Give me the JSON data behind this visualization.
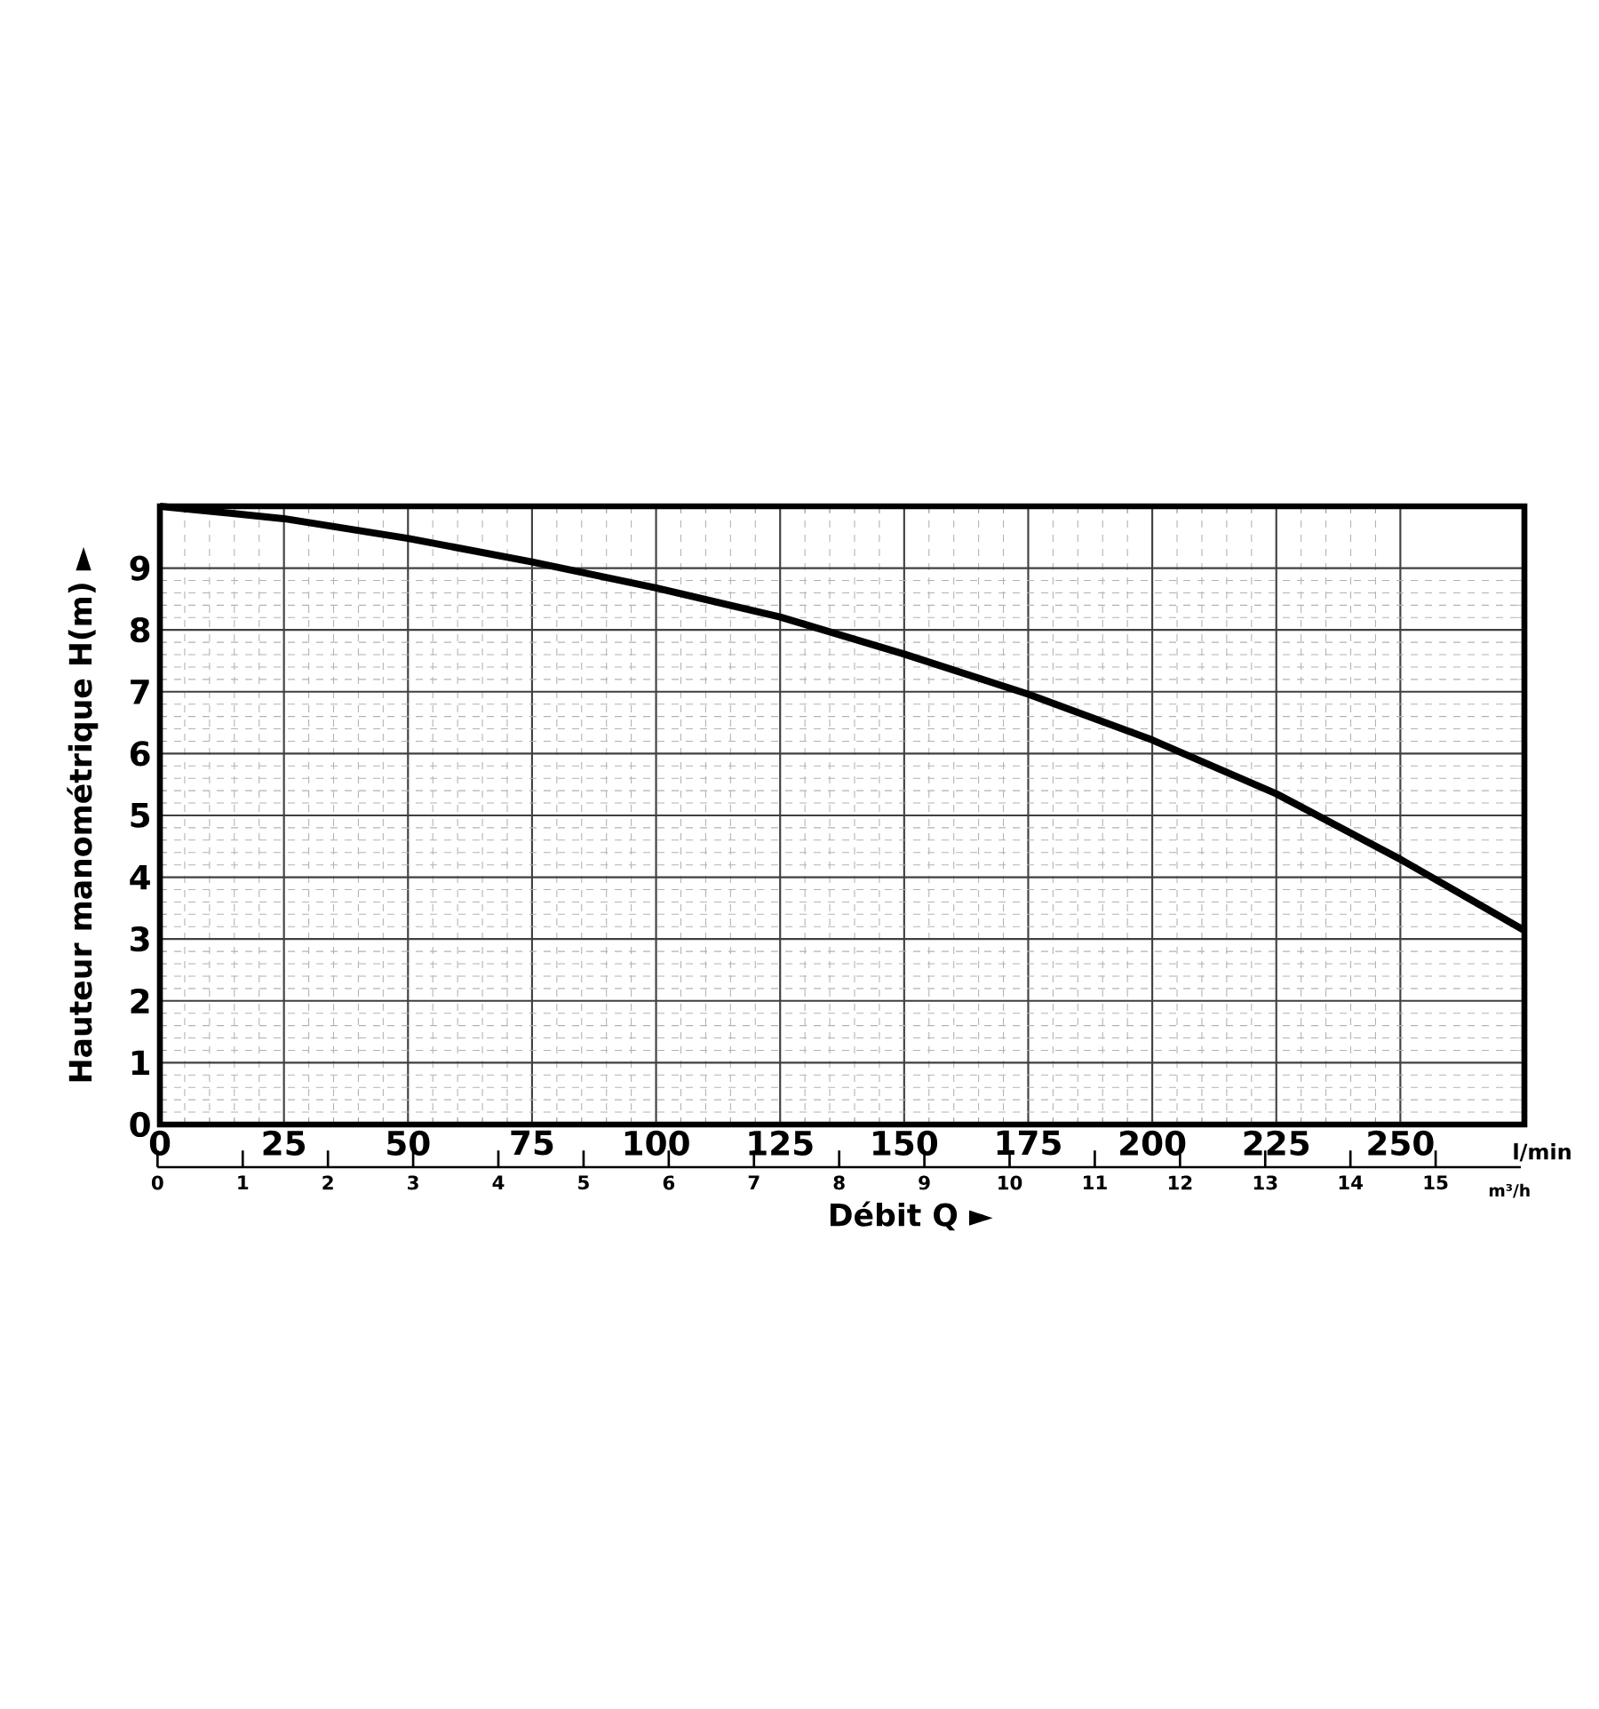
{
  "chart_data": {
    "type": "line",
    "xlabel": "Débit Q ►",
    "ylabel": "Hauteur manométrique H(m) ►",
    "x": [
      0,
      25,
      50,
      75,
      100,
      125,
      150,
      175,
      200,
      225,
      250,
      275
    ],
    "series": [
      {
        "color": "#000000",
        "values": [
          10,
          9.8,
          9.48,
          9.1,
          8.68,
          8.21,
          7.61,
          6.96,
          6.22,
          5.35,
          4.29,
          3.14
        ]
      }
    ],
    "xlim": [
      0,
      275
    ],
    "xticks": [
      0,
      25,
      50,
      75,
      100,
      125,
      150,
      175,
      200,
      225,
      250
    ],
    "ylim": [
      0,
      10
    ],
    "yticks": [
      0,
      1,
      2,
      3,
      4,
      5,
      6,
      7,
      8,
      9
    ],
    "x2lim": [
      0,
      16
    ],
    "x2ticks": [
      0,
      1,
      2,
      3,
      4,
      5,
      6,
      7,
      8,
      9,
      10,
      11,
      12,
      13,
      14,
      15
    ],
    "annotations": [
      "l/min",
      "m³/h"
    ],
    "grid": true
  }
}
